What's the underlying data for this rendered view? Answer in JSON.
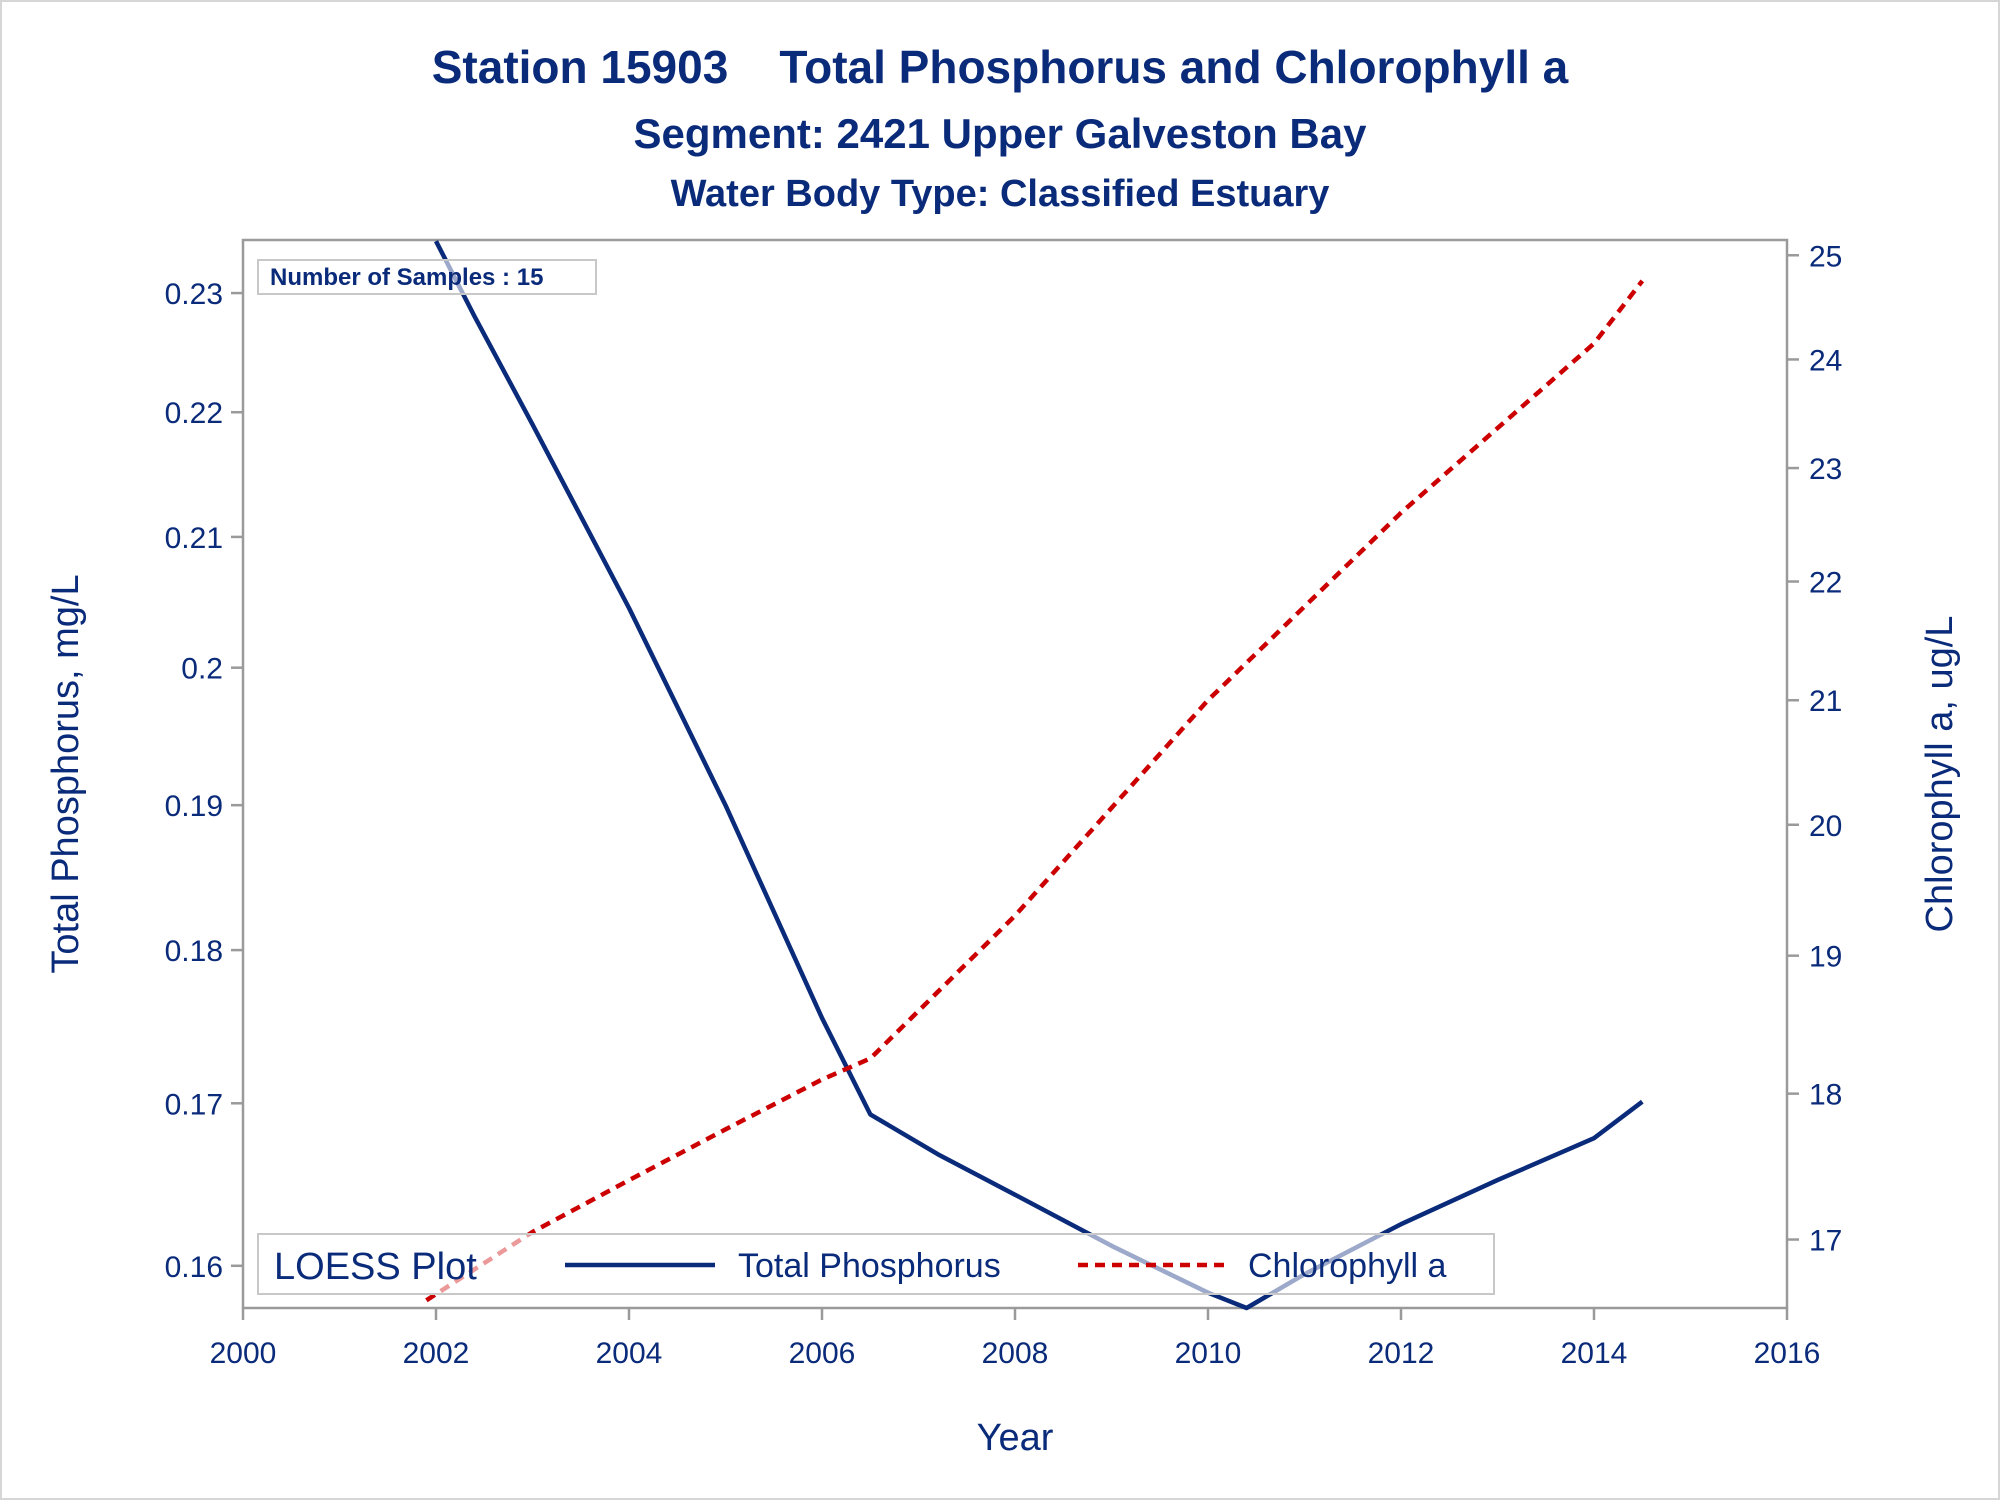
{
  "titles": {
    "line1": "Station 15903    Total Phosphorus and Chlorophyll a",
    "line2": "Segment: 2421  Upper Galveston Bay",
    "line3": "Water Body Type: Classified Estuary"
  },
  "inset": {
    "samples": "Number of Samples : 15"
  },
  "legend": {
    "title": "LOESS Plot"
  },
  "colors": {
    "text": "#0a2a7a",
    "phosphorus": "#0a2a7a",
    "chlorophyll": "#cc0000",
    "frame": "#9a9a9a"
  },
  "chart_data": {
    "type": "line",
    "xlabel": "Year",
    "ylabel": "Total Phosphorus, mg/L",
    "y2label": "Chlorophyll a, ug/L",
    "xlim": [
      2000,
      2016
    ],
    "xticks": [
      2000,
      2002,
      2004,
      2006,
      2008,
      2010,
      2012,
      2014,
      2016
    ],
    "xtick_labels": [
      "2000",
      "2002",
      "2004",
      "2006",
      "2008",
      "2010",
      "2012",
      "2014",
      "2016"
    ],
    "ylim": [
      0.1575,
      0.2346
    ],
    "yscale": "log",
    "yticks": [
      0.16,
      0.17,
      0.18,
      0.19,
      0.2,
      0.21,
      0.22,
      0.23
    ],
    "ytick_labels": [
      "0.16",
      "0.17",
      "0.18",
      "0.19",
      "0.2",
      "0.21",
      "0.22",
      "0.23"
    ],
    "y2lim": [
      16.55,
      25.15
    ],
    "y2scale": "log",
    "y2ticks": [
      17,
      18,
      19,
      20,
      21,
      22,
      23,
      24,
      25
    ],
    "y2tick_labels": [
      "17",
      "18",
      "19",
      "20",
      "21",
      "22",
      "23",
      "24",
      "25"
    ],
    "legend_position": "bottom",
    "grid": false,
    "series": [
      {
        "name": "Total Phosphorus",
        "axis": "left",
        "style": "solid",
        "x": [
          2002.0,
          2002.4,
          2003.0,
          2004.0,
          2005.0,
          2006.0,
          2006.5,
          2007.2,
          2008.0,
          2009.0,
          2010.0,
          2010.4,
          2011.0,
          2012.0,
          2013.0,
          2014.0,
          2014.5
        ],
        "y": [
          0.2345,
          0.228,
          0.219,
          0.2045,
          0.19,
          0.1755,
          0.1693,
          0.1668,
          0.1643,
          0.1612,
          0.1584,
          0.1575,
          0.1595,
          0.1625,
          0.1652,
          0.1678,
          0.1701
        ]
      },
      {
        "name": "Chlorophyll a",
        "axis": "right",
        "style": "dashed",
        "x": [
          2001.9,
          2003.0,
          2004.0,
          2005.0,
          2006.0,
          2006.5,
          2008.0,
          2010.0,
          2012.0,
          2014.0,
          2014.5
        ],
        "y": [
          16.6,
          17.05,
          17.4,
          17.75,
          18.1,
          18.25,
          19.3,
          21.0,
          22.6,
          24.15,
          24.75
        ]
      }
    ]
  }
}
